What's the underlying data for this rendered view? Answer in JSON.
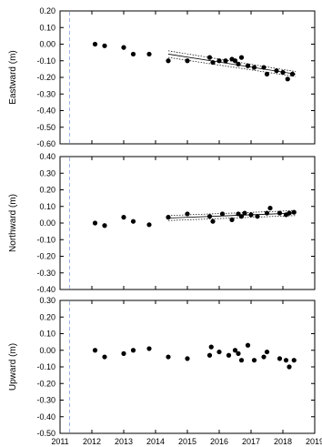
{
  "x_tick_labels": [
    "2011",
    "2012",
    "2013",
    "2014",
    "2015",
    "2016",
    "2017",
    "2018",
    "2019"
  ],
  "chart_data": [
    {
      "type": "scatter",
      "ylabel": "Eastward (m)",
      "xlim": [
        2011,
        2019
      ],
      "ylim": [
        -0.6,
        0.2
      ],
      "y_ticks": [
        "0.20",
        "0.10",
        "0.00",
        "-0.10",
        "-0.20",
        "-0.30",
        "-0.40",
        "-0.50",
        "-0.60"
      ],
      "grid": false,
      "reference_line_x": 2011.3,
      "points": [
        [
          2012.1,
          0.0
        ],
        [
          2012.4,
          -0.01
        ],
        [
          2013.0,
          -0.02
        ],
        [
          2013.3,
          -0.06
        ],
        [
          2013.8,
          -0.06
        ],
        [
          2014.4,
          -0.1
        ],
        [
          2015.0,
          -0.1
        ],
        [
          2015.7,
          -0.08
        ],
        [
          2015.8,
          -0.11
        ],
        [
          2016.0,
          -0.1
        ],
        [
          2016.2,
          -0.1
        ],
        [
          2016.4,
          -0.09
        ],
        [
          2016.5,
          -0.1
        ],
        [
          2016.6,
          -0.12
        ],
        [
          2016.7,
          -0.08
        ],
        [
          2016.9,
          -0.13
        ],
        [
          2017.1,
          -0.14
        ],
        [
          2017.4,
          -0.14
        ],
        [
          2017.5,
          -0.18
        ],
        [
          2017.8,
          -0.16
        ],
        [
          2018.0,
          -0.17
        ],
        [
          2018.15,
          -0.21
        ],
        [
          2018.3,
          -0.18
        ]
      ],
      "fit_line": [
        [
          2014.4,
          -0.06
        ],
        [
          2018.4,
          -0.18
        ]
      ],
      "confidence_band": {
        "upper": [
          [
            2014.4,
            -0.04
          ],
          [
            2018.4,
            -0.165
          ]
        ],
        "lower": [
          [
            2014.4,
            -0.08
          ],
          [
            2018.4,
            -0.195
          ]
        ]
      }
    },
    {
      "type": "scatter",
      "ylabel": "Northward (m)",
      "xlim": [
        2011,
        2019
      ],
      "ylim": [
        -0.4,
        0.4
      ],
      "y_ticks": [
        "0.40",
        "0.30",
        "0.20",
        "0.10",
        "0.00",
        "-0.10",
        "-0.20",
        "-0.30",
        "-0.40"
      ],
      "grid": false,
      "reference_line_x": 2011.3,
      "points": [
        [
          2012.1,
          0.0
        ],
        [
          2012.4,
          -0.015
        ],
        [
          2013.0,
          0.035
        ],
        [
          2013.3,
          0.01
        ],
        [
          2013.8,
          -0.01
        ],
        [
          2014.4,
          0.035
        ],
        [
          2015.0,
          0.055
        ],
        [
          2015.7,
          0.04
        ],
        [
          2015.8,
          0.01
        ],
        [
          2016.1,
          0.055
        ],
        [
          2016.4,
          0.02
        ],
        [
          2016.6,
          0.055
        ],
        [
          2016.7,
          0.04
        ],
        [
          2016.8,
          0.06
        ],
        [
          2017.0,
          0.05
        ],
        [
          2017.2,
          0.04
        ],
        [
          2017.5,
          0.06
        ],
        [
          2017.6,
          0.09
        ],
        [
          2017.9,
          0.06
        ],
        [
          2018.1,
          0.05
        ],
        [
          2018.2,
          0.06
        ],
        [
          2018.35,
          0.065
        ]
      ],
      "fit_line": [
        [
          2014.4,
          0.03
        ],
        [
          2018.4,
          0.06
        ]
      ],
      "confidence_band": {
        "upper": [
          [
            2014.4,
            0.045
          ],
          [
            2018.4,
            0.075
          ]
        ],
        "lower": [
          [
            2014.4,
            0.015
          ],
          [
            2018.4,
            0.045
          ]
        ]
      }
    },
    {
      "type": "scatter",
      "ylabel": "Upward (m)",
      "xlim": [
        2011,
        2019
      ],
      "ylim": [
        -0.5,
        0.3
      ],
      "y_ticks": [
        "0.30",
        "0.20",
        "0.10",
        "0.00",
        "-0.10",
        "-0.20",
        "-0.30",
        "-0.40",
        "-0.50"
      ],
      "grid": false,
      "reference_line_x": 2011.3,
      "points": [
        [
          2012.1,
          0.0
        ],
        [
          2012.4,
          -0.04
        ],
        [
          2013.0,
          -0.02
        ],
        [
          2013.3,
          0.0
        ],
        [
          2013.8,
          0.01
        ],
        [
          2014.4,
          -0.04
        ],
        [
          2015.0,
          -0.05
        ],
        [
          2015.7,
          -0.03
        ],
        [
          2015.75,
          0.02
        ],
        [
          2016.0,
          -0.01
        ],
        [
          2016.3,
          -0.03
        ],
        [
          2016.5,
          0.0
        ],
        [
          2016.6,
          -0.02
        ],
        [
          2016.7,
          -0.06
        ],
        [
          2016.9,
          0.03
        ],
        [
          2017.1,
          -0.06
        ],
        [
          2017.4,
          -0.04
        ],
        [
          2017.5,
          -0.01
        ],
        [
          2017.9,
          -0.05
        ],
        [
          2018.1,
          -0.06
        ],
        [
          2018.2,
          -0.1
        ],
        [
          2018.35,
          -0.06
        ]
      ]
    }
  ]
}
